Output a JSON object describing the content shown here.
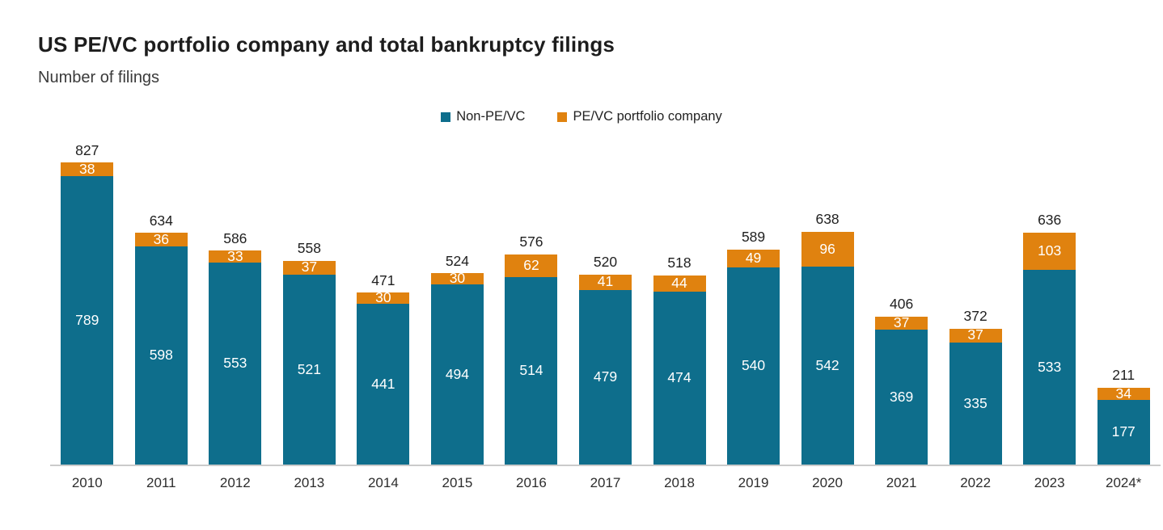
{
  "chart": {
    "title": "US PE/VC portfolio company and total bankruptcy filings",
    "subtitle": "Number of filings",
    "legend": [
      {
        "label": "Non-PE/VC",
        "color": "#0e6e8c"
      },
      {
        "label": "PE/VC portfolio company",
        "color": "#e0820f"
      }
    ]
  },
  "chart_data": {
    "type": "bar",
    "stacked": true,
    "title": "US PE/VC portfolio company and total bankruptcy filings",
    "subtitle": "Number of filings",
    "xlabel": "",
    "ylabel": "Number of filings",
    "categories": [
      "2010",
      "2011",
      "2012",
      "2013",
      "2014",
      "2015",
      "2016",
      "2017",
      "2018",
      "2019",
      "2020",
      "2021",
      "2022",
      "2023",
      "2024*"
    ],
    "series": [
      {
        "name": "Non-PE/VC",
        "color": "#0e6e8c",
        "values": [
          789,
          598,
          553,
          521,
          441,
          494,
          514,
          479,
          474,
          540,
          542,
          369,
          335,
          533,
          177
        ]
      },
      {
        "name": "PE/VC portfolio company",
        "color": "#e0820f",
        "values": [
          38,
          36,
          33,
          37,
          30,
          30,
          62,
          41,
          44,
          49,
          96,
          37,
          37,
          103,
          34
        ]
      }
    ],
    "totals": [
      827,
      634,
      586,
      558,
      471,
      524,
      576,
      520,
      518,
      589,
      638,
      406,
      372,
      636,
      211
    ],
    "ylim": [
      0,
      900
    ],
    "grid": false,
    "legend_position": "top-center",
    "axis_line_color": "#cbcbcb"
  }
}
